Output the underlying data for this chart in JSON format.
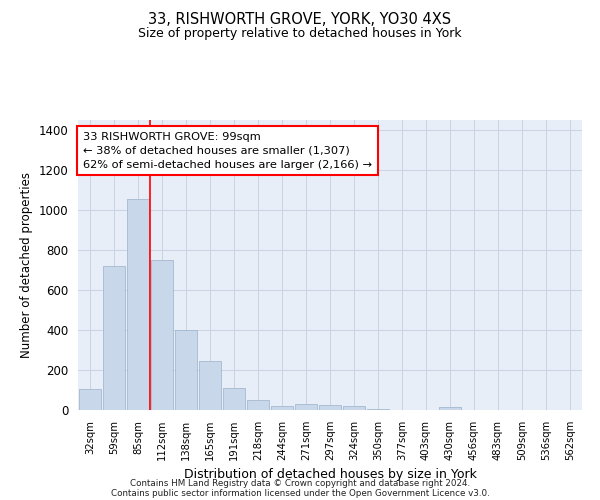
{
  "title1": "33, RISHWORTH GROVE, YORK, YO30 4XS",
  "title2": "Size of property relative to detached houses in York",
  "xlabel": "Distribution of detached houses by size in York",
  "ylabel": "Number of detached properties",
  "bar_color": "#c8d8ea",
  "bar_edge_color": "#9ab0c8",
  "categories": [
    "32sqm",
    "59sqm",
    "85sqm",
    "112sqm",
    "138sqm",
    "165sqm",
    "191sqm",
    "218sqm",
    "244sqm",
    "271sqm",
    "297sqm",
    "324sqm",
    "350sqm",
    "377sqm",
    "403sqm",
    "430sqm",
    "456sqm",
    "483sqm",
    "509sqm",
    "536sqm",
    "562sqm"
  ],
  "values": [
    105,
    720,
    1055,
    750,
    400,
    245,
    110,
    48,
    20,
    30,
    25,
    20,
    5,
    0,
    0,
    15,
    0,
    0,
    0,
    0,
    0
  ],
  "ylim": [
    0,
    1450
  ],
  "yticks": [
    0,
    200,
    400,
    600,
    800,
    1000,
    1200,
    1400
  ],
  "red_line_x": 2.5,
  "annotation_text": "33 RISHWORTH GROVE: 99sqm\n← 38% of detached houses are smaller (1,307)\n62% of semi-detached houses are larger (2,166) →",
  "annotation_box_color": "white",
  "annotation_box_edge_color": "red",
  "footer1": "Contains HM Land Registry data © Crown copyright and database right 2024.",
  "footer2": "Contains public sector information licensed under the Open Government Licence v3.0.",
  "grid_color": "#c8d4e4",
  "background_color": "#e8eef8"
}
